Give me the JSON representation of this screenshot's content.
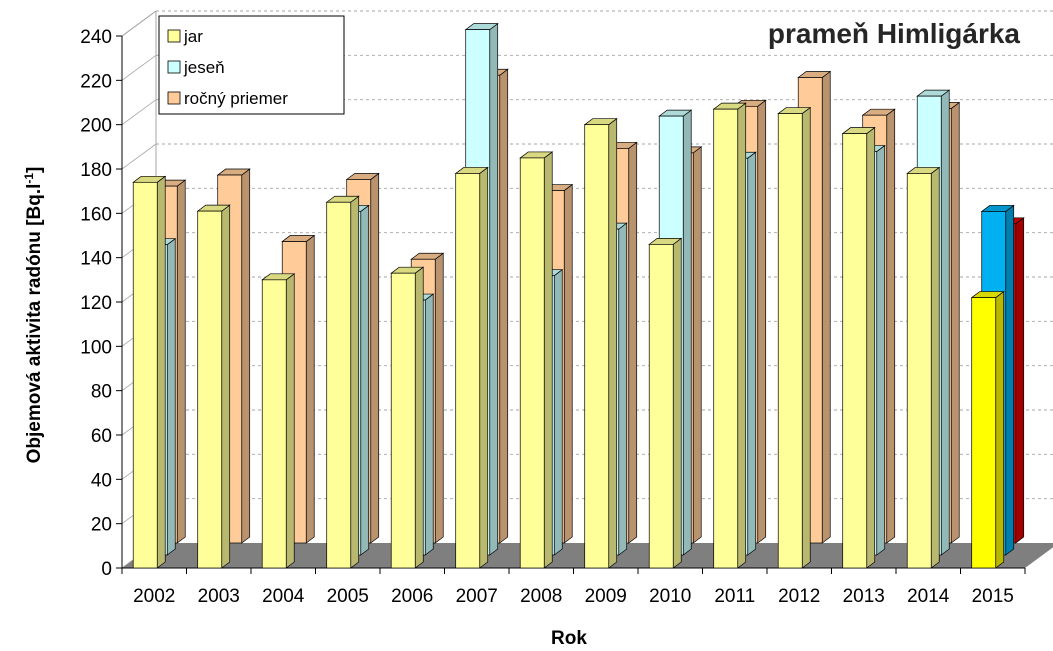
{
  "chart_data": {
    "type": "bar",
    "title": "prameň Himligárka",
    "xlabel": "Rok",
    "ylabel": "Objemová aktivita radónu [Bq.l-1]",
    "ylabel_main": "Objemová aktivita radónu [Bq.l",
    "ylabel_sup": "-1",
    "ylabel_end": "]",
    "ylim": [
      0,
      240
    ],
    "ytick_step": 20,
    "grid": true,
    "legend_position": "top-left",
    "categories": [
      "2002",
      "2003",
      "2004",
      "2005",
      "2006",
      "2007",
      "2008",
      "2009",
      "2010",
      "2011",
      "2012",
      "2013",
      "2014",
      "2015"
    ],
    "series": [
      {
        "name": "jar",
        "values": [
          174,
          161,
          130,
          165,
          133,
          178,
          185,
          200,
          146,
          207,
          205,
          196,
          178,
          122
        ]
      },
      {
        "name": "jeseň",
        "values": [
          140,
          null,
          null,
          155,
          115,
          237,
          126,
          147,
          198,
          179,
          null,
          182,
          207,
          155
        ]
      },
      {
        "name": "ročný priemer",
        "values": [
          161,
          166,
          136,
          164,
          128,
          211,
          159,
          178,
          176,
          197,
          210,
          193,
          196,
          144
        ]
      }
    ],
    "colors": {
      "jar": "#ffff99",
      "jesen": "#ccffff",
      "priemer": "#ffcc99",
      "jar_2015": "#ffff00",
      "jesen_2015": "#00b0f0",
      "priemer_2015": "#e00000",
      "floor": "#7f7f7f",
      "grid": "#a6a6a6"
    }
  }
}
